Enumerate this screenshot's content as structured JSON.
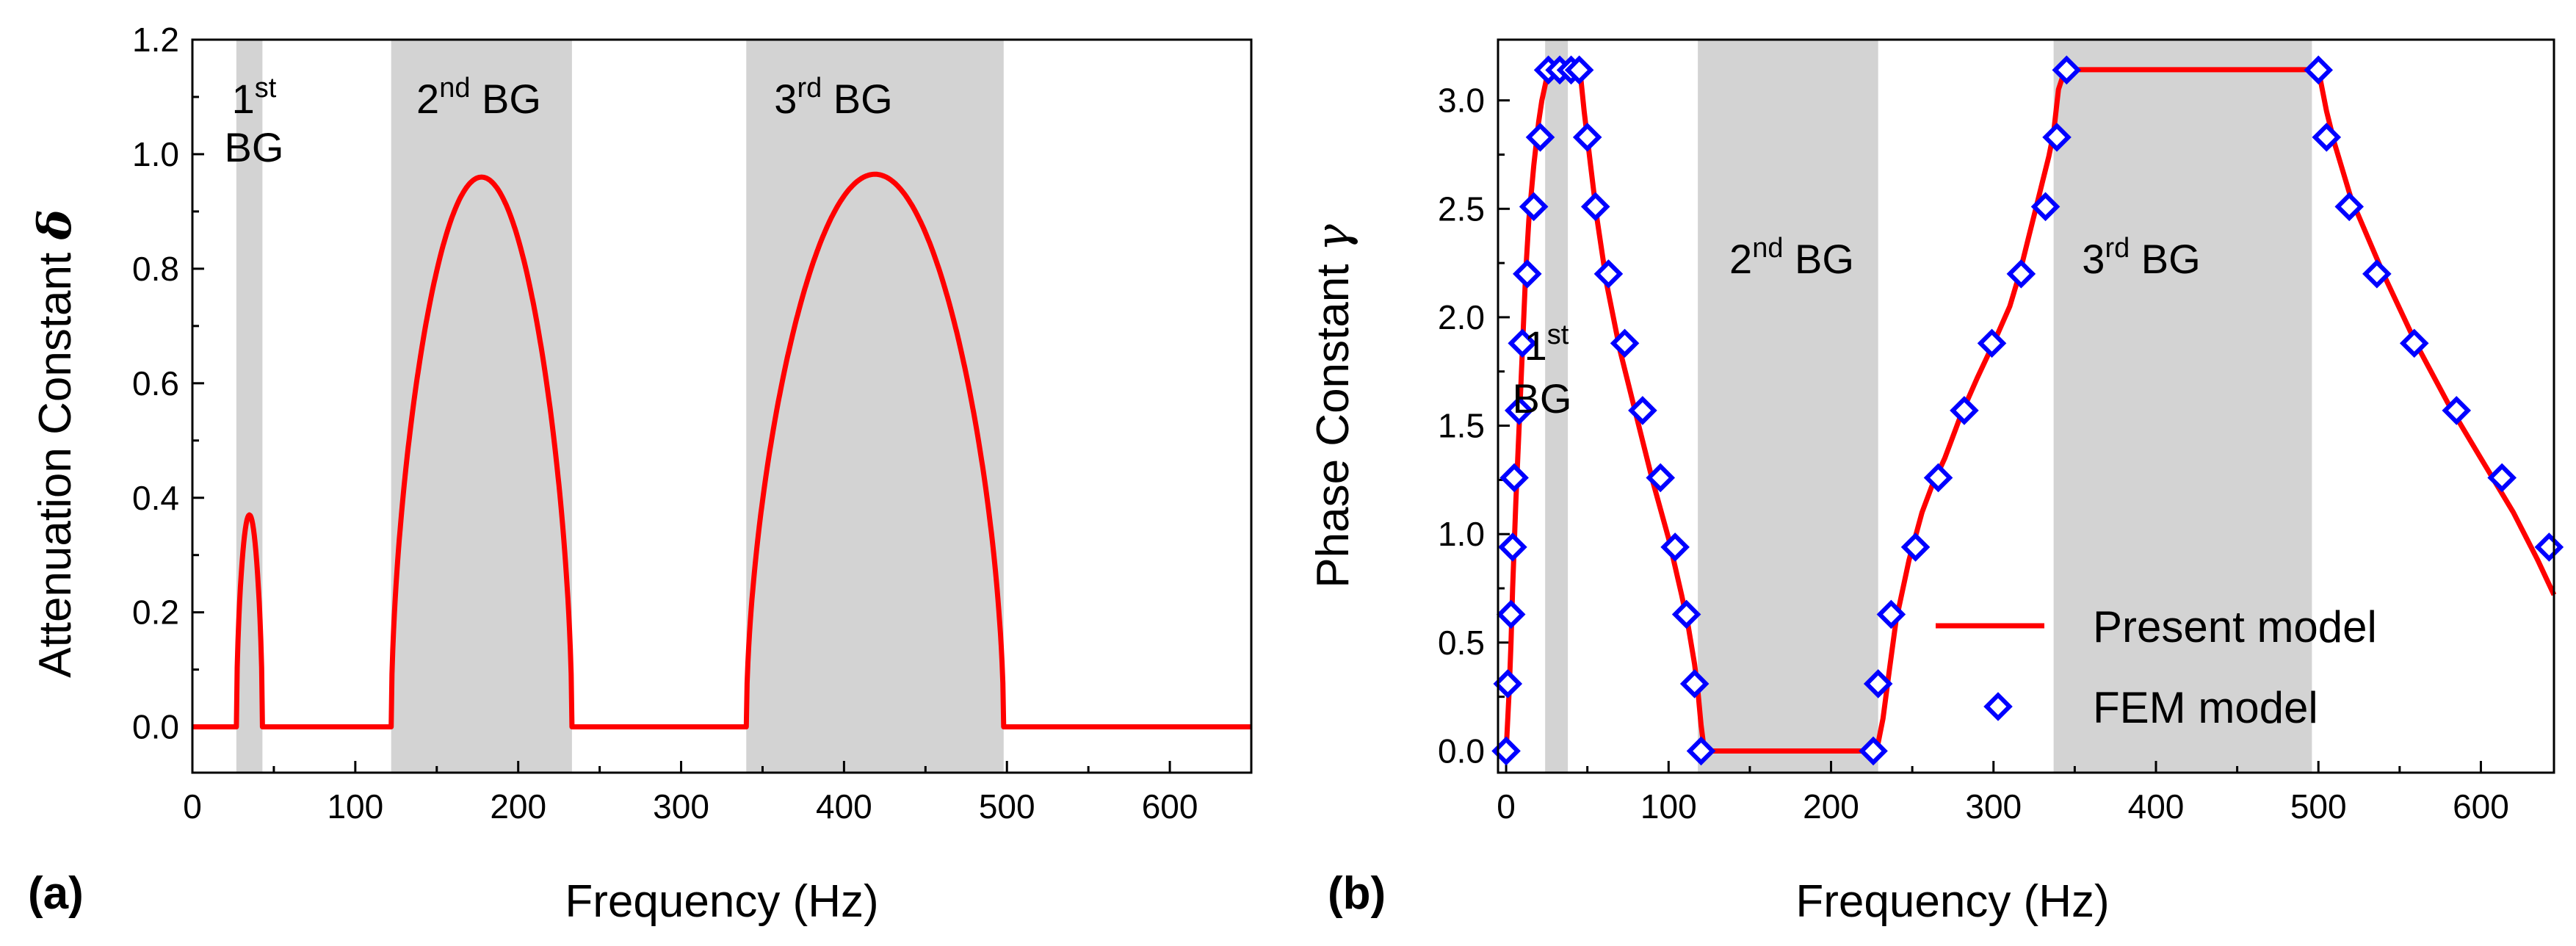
{
  "chart_data": [
    {
      "panel_label": "(a)",
      "type": "line",
      "xlabel": "Frequency (Hz)",
      "ylabel_text": "Attenuation Constant",
      "ylabel_symbol": "δ",
      "xlim": [
        0,
        650
      ],
      "ylim": [
        -0.08,
        1.2
      ],
      "x_ticks": [
        "0",
        "100",
        "200",
        "300",
        "400",
        "500",
        "600"
      ],
      "y_ticks": [
        "0.0",
        "0.2",
        "0.4",
        "0.6",
        "0.8",
        "1.0",
        "1.2"
      ],
      "bandgaps": [
        {
          "start": 27,
          "end": 43,
          "label_num": "1",
          "label_sup": "st",
          "label_rest": "BG"
        },
        {
          "start": 122,
          "end": 233,
          "label_num": "2",
          "label_sup": "nd",
          "label_rest": " BG"
        },
        {
          "start": 340,
          "end": 498,
          "label_num": "3",
          "label_sup": "rd",
          "label_rest": " BG"
        }
      ],
      "peaks": [
        {
          "start": 27,
          "end": 43,
          "peak": 0.37
        },
        {
          "start": 122,
          "end": 233,
          "peak": 0.96
        },
        {
          "start": 340,
          "end": 498,
          "peak": 0.965
        }
      ],
      "series": [
        {
          "name": "Present model",
          "color": "#ff0000"
        }
      ]
    },
    {
      "panel_label": "(b)",
      "type": "line",
      "xlabel": "Frequency (Hz)",
      "ylabel_text": "Phase Constant",
      "ylabel_symbol": "γ",
      "xlim": [
        -5,
        645
      ],
      "ylim": [
        -0.1,
        3.28
      ],
      "x_ticks": [
        "0",
        "100",
        "200",
        "300",
        "400",
        "500",
        "600"
      ],
      "y_ticks": [
        "0.0",
        "0.5",
        "1.0",
        "1.5",
        "2.0",
        "2.5",
        "3.0"
      ],
      "bandgaps": [
        {
          "start": 24,
          "end": 38,
          "label_num": "1",
          "label_sup": "st",
          "label_rest": "BG"
        },
        {
          "start": 118,
          "end": 229,
          "label_num": "2",
          "label_sup": "nd",
          "label_rest": " BG"
        },
        {
          "start": 337,
          "end": 496,
          "label_num": "3",
          "label_sup": "rd",
          "label_rest": " BG"
        }
      ],
      "series": [
        {
          "name": "Present model",
          "color": "#ff0000",
          "x": [
            0,
            1,
            2,
            3,
            4,
            5,
            6,
            8,
            10,
            12,
            14,
            17,
            20,
            22,
            24,
            26,
            28,
            32,
            38,
            44,
            46,
            48,
            52,
            56,
            62,
            70,
            80,
            90,
            100,
            108,
            112,
            116,
            118,
            120,
            122,
            150,
            200,
            228,
            232,
            236,
            240,
            248,
            256,
            262,
            270,
            280,
            290,
            300,
            310,
            316,
            322,
            326,
            330,
            334,
            337,
            340,
            344,
            400,
            498,
            500,
            505,
            510,
            520,
            540,
            560,
            580,
            600,
            620,
            635,
            645
          ],
          "y": [
            0.0,
            0.15,
            0.3,
            0.5,
            0.75,
            0.95,
            1.15,
            1.5,
            1.85,
            2.2,
            2.45,
            2.7,
            2.9,
            3.0,
            3.07,
            3.1416,
            3.1416,
            3.1416,
            3.1416,
            3.1416,
            3.1,
            2.95,
            2.7,
            2.45,
            2.15,
            1.85,
            1.55,
            1.25,
            0.98,
            0.72,
            0.58,
            0.4,
            0.28,
            0.12,
            0.0,
            0.0,
            0.0,
            0.0,
            0.15,
            0.38,
            0.6,
            0.88,
            1.1,
            1.22,
            1.35,
            1.55,
            1.72,
            1.88,
            2.05,
            2.2,
            2.38,
            2.5,
            2.62,
            2.74,
            2.85,
            3.05,
            3.1416,
            3.1416,
            3.1416,
            3.1416,
            2.95,
            2.8,
            2.55,
            2.2,
            1.88,
            1.6,
            1.35,
            1.1,
            0.88,
            0.72
          ]
        },
        {
          "name": "FEM model",
          "color": "#0000ff",
          "marker": "diamond",
          "x": [
            0,
            1,
            3,
            4,
            5,
            8,
            10,
            13,
            17,
            21,
            26,
            33,
            40,
            45,
            50,
            55,
            63,
            73,
            84,
            95,
            104,
            111,
            116,
            120,
            226,
            229,
            237,
            252,
            266,
            282,
            299,
            317,
            332,
            339,
            345,
            500,
            505,
            519,
            536,
            559,
            585,
            613,
            642
          ],
          "y": [
            0.0,
            0.31,
            0.63,
            0.94,
            1.26,
            1.57,
            1.88,
            2.2,
            2.51,
            2.83,
            3.14,
            3.14,
            3.14,
            3.14,
            2.83,
            2.51,
            2.2,
            1.88,
            1.57,
            1.26,
            0.94,
            0.63,
            0.31,
            0.0,
            0.0,
            0.31,
            0.63,
            0.94,
            1.26,
            1.57,
            1.88,
            2.2,
            2.51,
            2.83,
            3.14,
            3.14,
            2.83,
            2.51,
            2.2,
            1.88,
            1.57,
            1.26,
            0.94
          ]
        }
      ],
      "legend_position": "bottom-right"
    }
  ]
}
